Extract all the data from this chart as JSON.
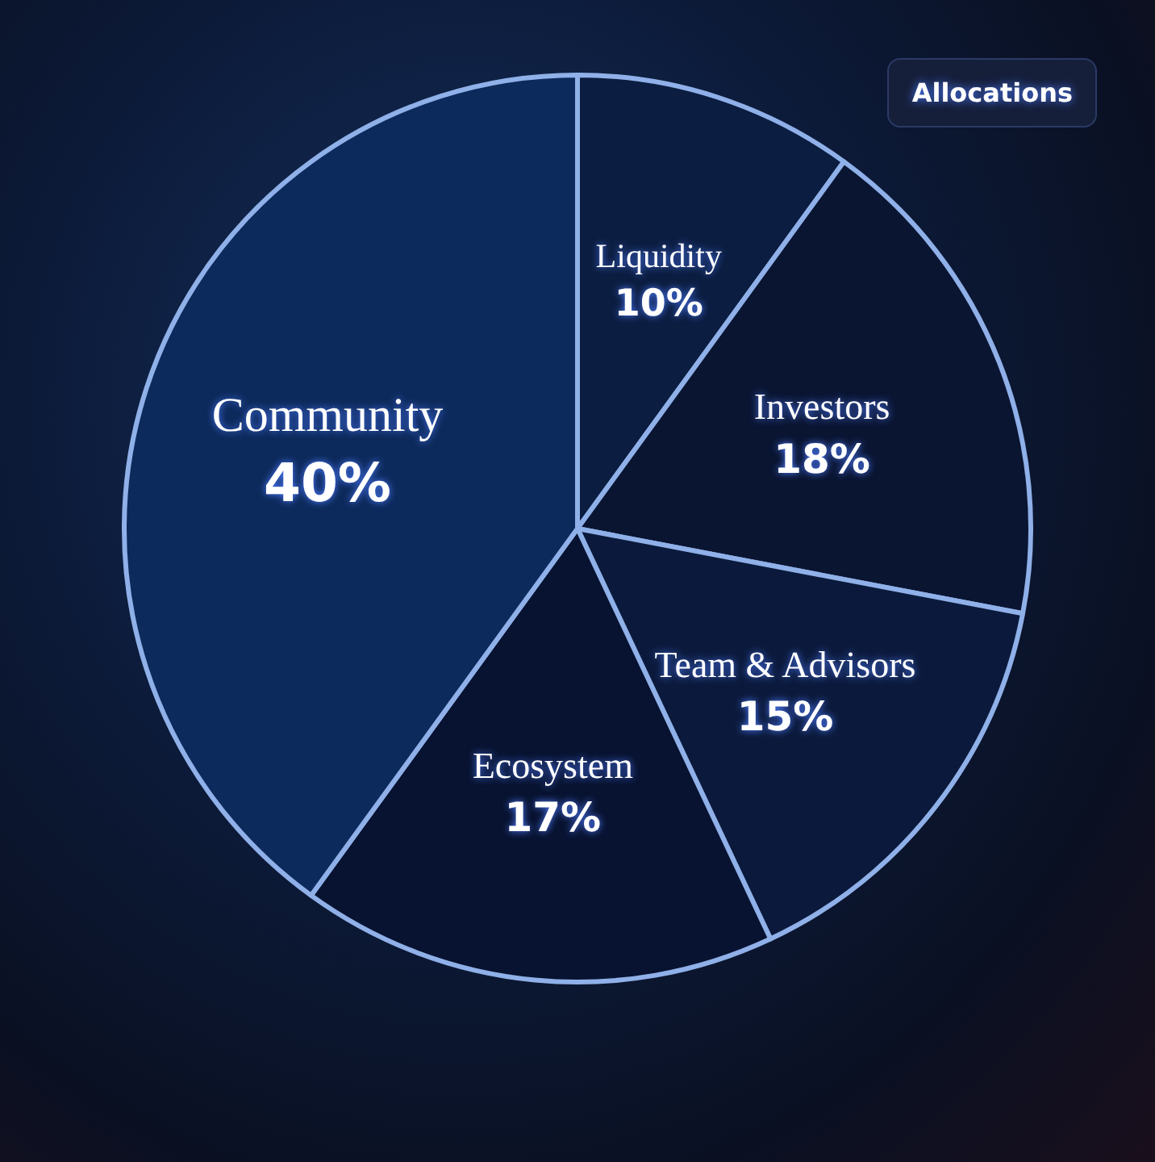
{
  "chart_data": {
    "type": "pie",
    "title": "Allocations",
    "categories": [
      "Liquidity",
      "Investors",
      "Team & Advisors",
      "Ecosystem",
      "Community"
    ],
    "values": [
      10,
      18,
      15,
      17,
      40
    ],
    "value_labels": [
      "10%",
      "18%",
      "15%",
      "17%",
      "40%"
    ],
    "colors": [
      "#0b1d40",
      "#0a1532",
      "#0b1a3c",
      "#081331",
      "#0d2a5c"
    ],
    "legend": false
  }
}
